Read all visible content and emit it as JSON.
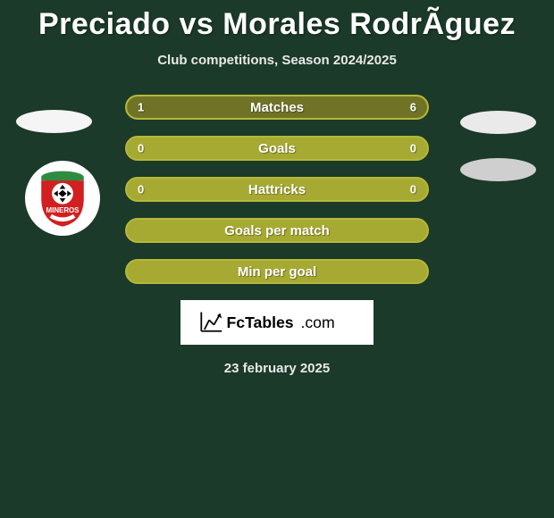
{
  "title": "Preciado vs Morales RodrÃ­guez",
  "subtitle": "Club competitions, Season 2024/2025",
  "date": "23 february 2025",
  "brand_text": "FcTables.com",
  "side_blobs": {
    "left": {
      "color": "#f5f5f5"
    },
    "right1": {
      "color": "#eaeaea"
    },
    "right2": {
      "color": "#cfcfcf"
    }
  },
  "empty_row_bg": "#a7aa32",
  "row_border": "#b5b838",
  "stats": [
    {
      "label": "Matches",
      "left_val": "1",
      "right_val": "6",
      "left_pct": 14,
      "right_pct": 86,
      "left_color": "#707325",
      "right_color": "#707325"
    },
    {
      "label": "Goals",
      "left_val": "0",
      "right_val": "0",
      "left_pct": 0,
      "right_pct": 0,
      "left_color": "#707325",
      "right_color": "#707325"
    },
    {
      "label": "Hattricks",
      "left_val": "0",
      "right_val": "0",
      "left_pct": 0,
      "right_pct": 0,
      "left_color": "#707325",
      "right_color": "#707325"
    },
    {
      "label": "Goals per match",
      "left_val": "",
      "right_val": "",
      "left_pct": 0,
      "right_pct": 0,
      "left_color": "#707325",
      "right_color": "#707325"
    },
    {
      "label": "Min per goal",
      "left_val": "",
      "right_val": "",
      "left_pct": 0,
      "right_pct": 0,
      "left_color": "#707325",
      "right_color": "#707325"
    }
  ],
  "club_badge": {
    "pitch_color": "#2e8b3f",
    "red": "#d21f1f",
    "text": "MINEROS"
  },
  "colors": {
    "page_bg": "#1b3a29"
  }
}
